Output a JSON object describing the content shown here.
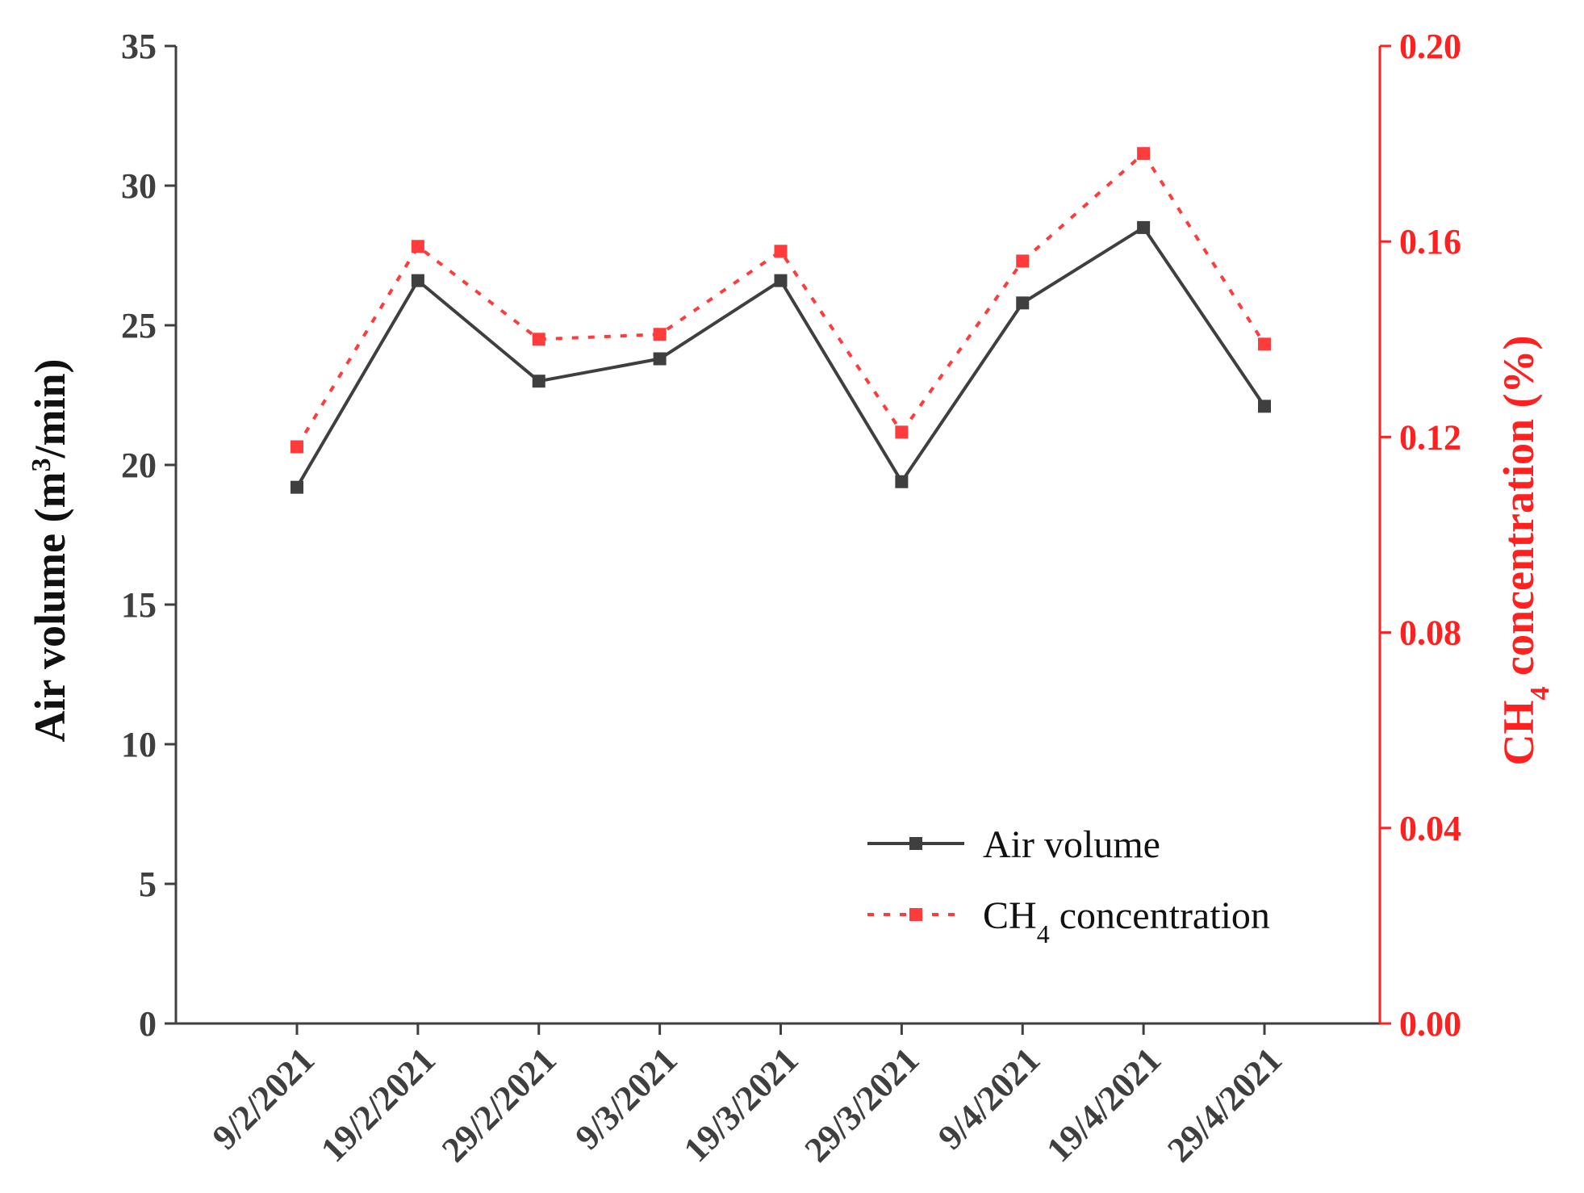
{
  "chart_data": {
    "type": "line",
    "categories": [
      "9/2/2021",
      "19/2/2021",
      "29/2/2021",
      "9/3/2021",
      "19/3/2021",
      "29/3/2021",
      "9/4/2021",
      "19/4/2021",
      "29/4/2021"
    ],
    "series": [
      {
        "name": "Air volume",
        "axis": "left",
        "values": [
          19.2,
          26.6,
          23.0,
          23.8,
          26.6,
          19.4,
          25.8,
          28.5,
          22.1
        ],
        "color": "#3f3f3f",
        "line_style": "solid",
        "marker": "square"
      },
      {
        "name_main": "CH",
        "name_sub": "4",
        "name_rest": " concentration",
        "axis": "right",
        "values": [
          0.118,
          0.159,
          0.14,
          0.141,
          0.158,
          0.121,
          0.156,
          0.178,
          0.139
        ],
        "color": "#ff3b3b",
        "line_style": "dotted",
        "marker": "square"
      }
    ],
    "y_left": {
      "label_main": "Air volume (m",
      "label_sup": "3",
      "label_rest": "/min)",
      "ylim": [
        0,
        35
      ],
      "ticks": [
        0,
        5,
        10,
        15,
        20,
        25,
        30,
        35
      ],
      "tick_labels": [
        "0",
        "5",
        "10",
        "15",
        "20",
        "25",
        "30",
        "35"
      ],
      "color": "#3f3f3f"
    },
    "y_right": {
      "label_main": "CH",
      "label_sub": "4",
      "label_rest": " concentration (%)",
      "ylim": [
        0,
        0.2
      ],
      "ticks": [
        0,
        0.04,
        0.08,
        0.12,
        0.16,
        0.2
      ],
      "tick_labels": [
        "0.00",
        "0.04",
        "0.08",
        "0.12",
        "0.16",
        "0.20"
      ],
      "color": "#ff2020"
    },
    "legend": {
      "placement": "lower-right",
      "air_label": "Air volume",
      "ch4_main": "CH",
      "ch4_sub": "4",
      "ch4_rest": " concentration"
    },
    "grid": false
  }
}
